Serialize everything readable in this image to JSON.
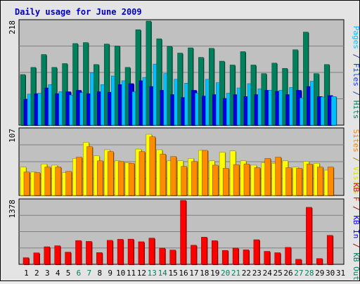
{
  "chart_data": [
    {
      "type": "bar",
      "title": "Daily usage for June 2009",
      "ytick_top": "218",
      "ylim": [
        0,
        218
      ],
      "right_labels": [
        {
          "text": "Pages",
          "color": "#00c0ff"
        },
        {
          "text": " / ",
          "color": "#1f3fa0"
        },
        {
          "text": "Files",
          "color": "#0040ff"
        },
        {
          "text": " / ",
          "color": "#1f3fa0"
        },
        {
          "text": "Hits",
          "color": "#008060"
        }
      ],
      "categories": [
        "1",
        "2",
        "3",
        "4",
        "5",
        "6",
        "7",
        "8",
        "9",
        "10",
        "11",
        "12",
        "13",
        "14",
        "15",
        "16",
        "17",
        "18",
        "19",
        "20",
        "21",
        "22",
        "23",
        "24",
        "25",
        "26",
        "27",
        "28",
        "29",
        "30",
        "31"
      ],
      "series": [
        {
          "name": "Hits",
          "color": "#00805c",
          "values": [
            106,
            121,
            148,
            121,
            129,
            171,
            173,
            127,
            170,
            166,
            121,
            200,
            218,
            181,
            165,
            151,
            162,
            142,
            161,
            134,
            126,
            154,
            126,
            108,
            130,
            119,
            158,
            195,
            108,
            127,
            null
          ]
        },
        {
          "name": "Files",
          "color": "#0000e0",
          "values": [
            54,
            66,
            78,
            66,
            70,
            73,
            66,
            70,
            69,
            85,
            87,
            93,
            81,
            73,
            64,
            58,
            73,
            61,
            64,
            56,
            64,
            60,
            64,
            73,
            71,
            64,
            73,
            81,
            60,
            62,
            null
          ]
        },
        {
          "name": "Pages",
          "color": "#00c0ff",
          "values": [
            65,
            67,
            85,
            70,
            63,
            68,
            110,
            85,
            103,
            93,
            70,
            100,
            128,
            108,
            96,
            88,
            67,
            96,
            89,
            67,
            78,
            87,
            76,
            73,
            73,
            79,
            57,
            92,
            59,
            60,
            null
          ]
        }
      ]
    },
    {
      "type": "bar",
      "ytick_top": "107",
      "ylim": [
        0,
        107
      ],
      "right_labels": [
        {
          "text": "Sites",
          "color": "#ff8000"
        },
        {
          "text": " / ",
          "color": "#a08000"
        },
        {
          "text": "Visits",
          "color": "#e0e000"
        }
      ],
      "categories": [
        "1",
        "2",
        "3",
        "4",
        "5",
        "6",
        "7",
        "8",
        "9",
        "10",
        "11",
        "12",
        "13",
        "14",
        "15",
        "16",
        "17",
        "18",
        "19",
        "20",
        "21",
        "22",
        "23",
        "24",
        "25",
        "26",
        "27",
        "28",
        "29",
        "30",
        "31"
      ],
      "series": [
        {
          "name": "Visits",
          "color": "#ffff00",
          "values": [
            46,
            38,
            51,
            49,
            37,
            60,
            86,
            64,
            74,
            56,
            53,
            75,
            99,
            74,
            56,
            56,
            60,
            73,
            56,
            70,
            72,
            56,
            49,
            53,
            52,
            56,
            46,
            55,
            52,
            41,
            null
          ]
        },
        {
          "name": "Sites",
          "color": "#ff8c00",
          "values": [
            38,
            37,
            46,
            46,
            39,
            62,
            79,
            56,
            71,
            55,
            52,
            71,
            95,
            67,
            63,
            47,
            55,
            73,
            49,
            44,
            50,
            51,
            45,
            60,
            62,
            45,
            44,
            51,
            46,
            46,
            null
          ]
        }
      ]
    },
    {
      "type": "bar",
      "ytick_top": "1378",
      "ylim": [
        0,
        1378
      ],
      "right_labels": [
        {
          "text": "KB F",
          "color": "#ff0000"
        },
        {
          "text": " / ",
          "color": "#a00000"
        },
        {
          "text": "KB In",
          "color": "#0000ff"
        },
        {
          "text": " / ",
          "color": "#a00000"
        },
        {
          "text": "KB Out",
          "color": "#008060"
        }
      ],
      "categories": [
        "1",
        "2",
        "3",
        "4",
        "5",
        "6",
        "7",
        "8",
        "9",
        "10",
        "11",
        "12",
        "13",
        "14",
        "15",
        "16",
        "17",
        "18",
        "19",
        "20",
        "21",
        "22",
        "23",
        "24",
        "25",
        "26",
        "27",
        "28",
        "29",
        "30",
        "31"
      ],
      "series": [
        {
          "name": "KB F",
          "color": "#ff0000",
          "values": [
            143,
            247,
            378,
            400,
            263,
            512,
            494,
            252,
            517,
            539,
            543,
            486,
            565,
            349,
            308,
            1378,
            411,
            585,
            509,
            299,
            350,
            312,
            530,
            280,
            250,
            365,
            109,
            1228,
            124,
            624,
            null
          ]
        }
      ]
    }
  ],
  "colors": {
    "plot_bg": "#c0c0c0",
    "grid": "#808080",
    "title": "#0000c0",
    "weekend_day": "#00805c",
    "weekday_day": "#000000"
  },
  "weekend_days": [
    "6",
    "7",
    "13",
    "14",
    "20",
    "21",
    "27",
    "28"
  ]
}
